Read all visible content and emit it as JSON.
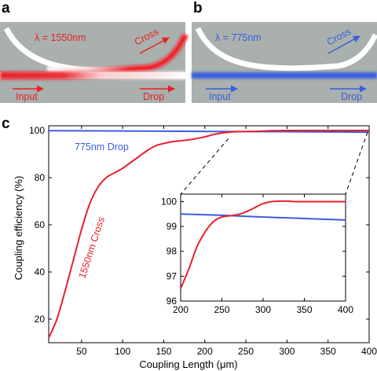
{
  "colors": {
    "panel_bg": "#a9b0ad",
    "waveguide": "#ffffff",
    "red": "#e8202a",
    "blue": "#3a5ee0",
    "axis": "#000000"
  },
  "panel_a": {
    "letter": "a",
    "wavelength": "λ = 1550nm",
    "cross": "Cross",
    "input": "Input",
    "drop": "Drop"
  },
  "panel_b": {
    "letter": "b",
    "wavelength": "λ = 775nm",
    "cross": "Cross",
    "input": "Input",
    "drop": "Drop"
  },
  "panel_c": {
    "letter": "c",
    "xlabel": "Coupling Length (μm)",
    "ylabel": "Coupling efficiency (%)",
    "blue_label": "775nm Drop",
    "red_label": "1550nm Cross"
  },
  "chart_data": [
    {
      "type": "line",
      "xlim": [
        10,
        400
      ],
      "ylim": [
        10,
        102
      ],
      "x_ticks": [
        50,
        100,
        150,
        200,
        250,
        300,
        350,
        400
      ],
      "y_ticks": [
        20,
        40,
        60,
        80,
        100
      ],
      "xlabel": "Coupling Length (μm)",
      "ylabel": "Coupling efficiency (%)",
      "grid": false,
      "series": [
        {
          "name": "775nm Drop",
          "color": "#3a5ee0",
          "x": [
            10,
            100,
            200,
            300,
            400
          ],
          "y": [
            99.9,
            99.8,
            99.6,
            99.5,
            99.3
          ]
        },
        {
          "name": "1550nm Cross",
          "color": "#e8202a",
          "x": [
            10,
            20,
            30,
            40,
            50,
            60,
            70,
            80,
            90,
            100,
            110,
            120,
            130,
            140,
            150,
            160,
            170,
            180,
            190,
            200,
            210,
            220,
            230,
            240,
            250,
            260,
            270,
            280,
            290,
            300,
            310,
            320,
            330,
            340,
            350,
            360,
            370,
            380,
            390,
            400
          ],
          "y": [
            12,
            20,
            32,
            45,
            58,
            69,
            76,
            80,
            82,
            84,
            86.5,
            89,
            91.5,
            93.5,
            94.5,
            95.2,
            95.6,
            96,
            96.6,
            97.3,
            98.2,
            98.9,
            99.3,
            99.5,
            99.55,
            99.6,
            99.75,
            99.9,
            99.98,
            100,
            100,
            100,
            100,
            100,
            100,
            100,
            100,
            100,
            100,
            100
          ]
        }
      ]
    },
    {
      "type": "line",
      "xlim": [
        200,
        400
      ],
      "ylim": [
        96,
        100.3
      ],
      "x_ticks": [
        200,
        250,
        300,
        350,
        400
      ],
      "y_ticks": [
        96,
        97,
        98,
        99,
        100
      ],
      "grid": false,
      "series": [
        {
          "color": "#3a5ee0",
          "x": [
            200,
            250,
            300,
            350,
            400
          ],
          "y": [
            99.5,
            99.45,
            99.38,
            99.32,
            99.26
          ]
        },
        {
          "color": "#e8202a",
          "x": [
            200,
            210,
            220,
            230,
            240,
            250,
            260,
            270,
            280,
            290,
            300,
            310,
            320,
            330,
            340,
            350,
            360,
            370,
            380,
            390,
            400
          ],
          "y": [
            96.5,
            97.3,
            98.2,
            98.8,
            99.2,
            99.38,
            99.43,
            99.48,
            99.6,
            99.76,
            99.92,
            100,
            100.02,
            100.02,
            100,
            100,
            100,
            100,
            100,
            100,
            100
          ]
        }
      ]
    }
  ]
}
